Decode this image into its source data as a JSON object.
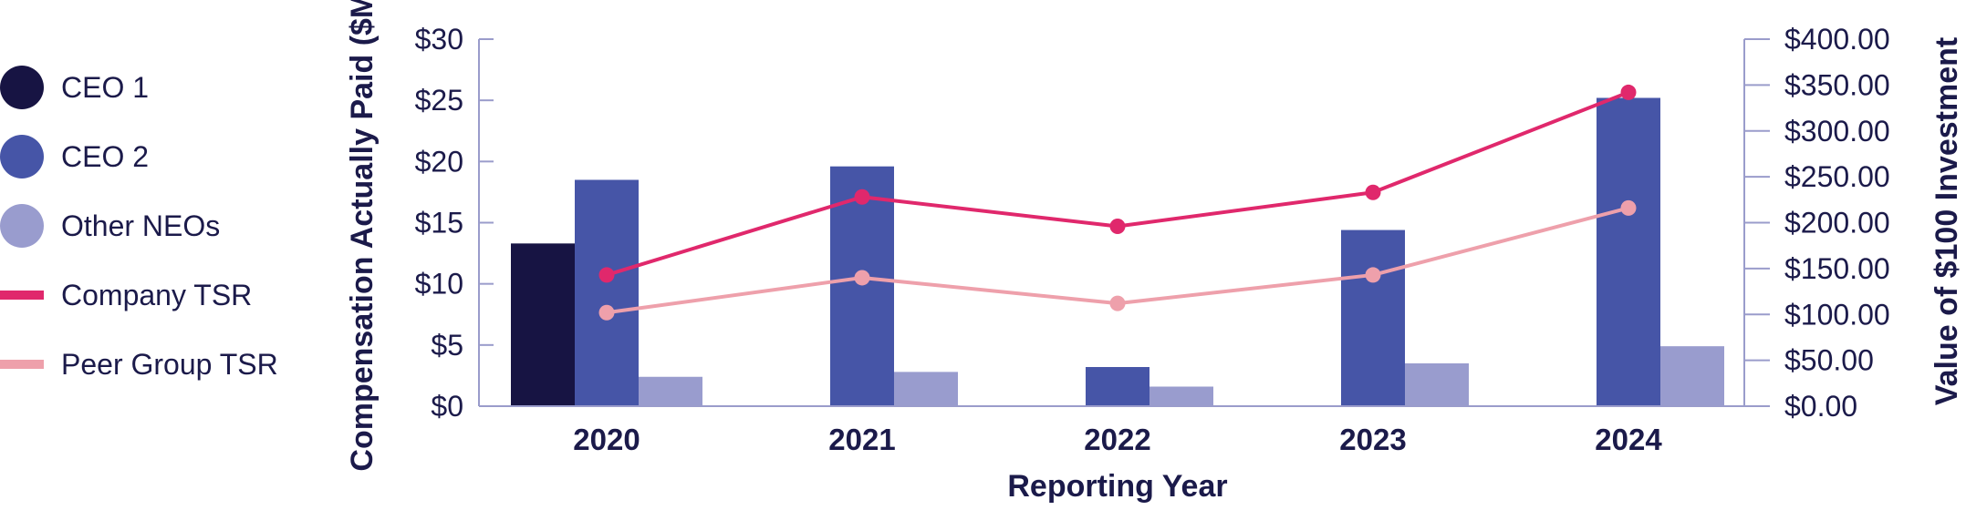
{
  "chart_data": {
    "type": "bar",
    "categories": [
      "2020",
      "2021",
      "2022",
      "2023",
      "2024"
    ],
    "xlabel": "Reporting Year",
    "ylabel": "Compensation Actually Paid ($M)",
    "y2label": "Value of $100 Investment",
    "ylim": [
      0,
      30
    ],
    "y2lim": [
      0,
      400
    ],
    "yticks": [
      "$0",
      "$5",
      "$10",
      "$15",
      "$20",
      "$25",
      "$30"
    ],
    "y2ticks": [
      "$0.00",
      "$50.00",
      "$100.00",
      "$150.00",
      "$200.00",
      "$250.00",
      "$300.00",
      "$350.00",
      "$400.00"
    ],
    "grid": false,
    "legend_position": "left",
    "bar_series": [
      {
        "name": "CEO 1",
        "color": "#171443",
        "values": [
          13.3,
          null,
          null,
          null,
          null
        ]
      },
      {
        "name": "CEO 2",
        "color": "#4655a7",
        "values": [
          18.5,
          19.6,
          3.2,
          14.4,
          25.2
        ]
      },
      {
        "name": "Other NEOs",
        "color": "#999cce",
        "values": [
          2.4,
          2.8,
          1.6,
          3.5,
          4.9
        ]
      }
    ],
    "line_series": [
      {
        "name": "Company TSR",
        "color": "#e0286c",
        "values": [
          143,
          228,
          196,
          233,
          342
        ]
      },
      {
        "name": "Peer Group TSR",
        "color": "#eea0ab",
        "values": [
          102,
          140,
          112,
          143,
          216
        ]
      }
    ]
  }
}
